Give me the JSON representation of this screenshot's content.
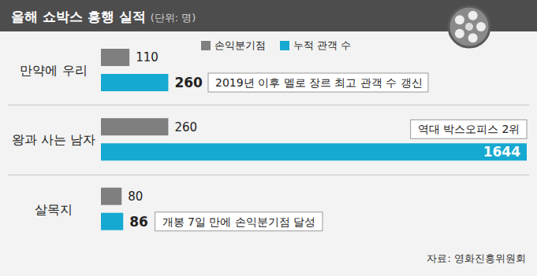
{
  "chart_data": {
    "type": "bar",
    "orientation": "horizontal",
    "title": "올해 쇼박스 흥행 실적",
    "subtitle": "(단위: 명)",
    "categories": [
      "만약에 우리",
      "왕과 사는 남자",
      "살목지"
    ],
    "series": [
      {
        "name": "손익분기점",
        "color": "#7f7f7f",
        "values": [
          110,
          260,
          80
        ]
      },
      {
        "name": "누적 관객 수",
        "color": "#16a9d1",
        "values": [
          260,
          1644,
          86
        ]
      }
    ],
    "xlim": [
      0,
      1644
    ],
    "tick_labels": false,
    "data_labels": true,
    "legend": "top",
    "grid": false,
    "annotations": [
      {
        "category": "만약에 우리",
        "series": "누적 관객 수",
        "text": "2019년 이후 멜로 장르 최고 관객 수 갱신"
      },
      {
        "category": "왕과 사는 남자",
        "series": "누적 관객 수",
        "text": "역대 박스오피스 2위"
      },
      {
        "category": "살목지",
        "series": "누적 관객 수",
        "text": "개봉 7일 만에 손익분기점 달성"
      }
    ],
    "source": "자료: 영화진흥위원회"
  }
}
